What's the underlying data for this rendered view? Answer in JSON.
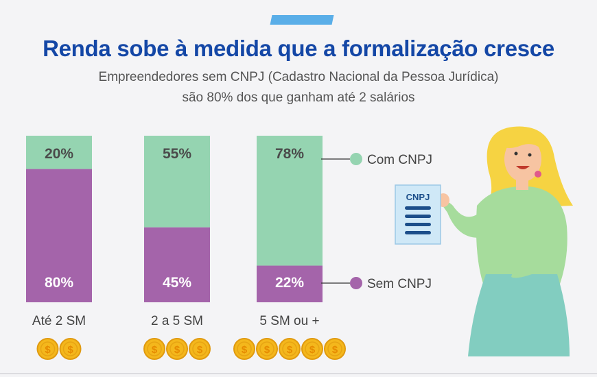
{
  "header": {
    "title": "Renda sobe à medida que a formalização cresce",
    "subtitle_line1": "Empreendedores sem CNPJ (Cadastro Nacional da Pessoa Jurídica)",
    "subtitle_line2": "são 80% dos que ganham até 2 salários"
  },
  "colors": {
    "com_cnpj": "#95d4b1",
    "sem_cnpj": "#a464aa",
    "title": "#1447a6",
    "accent": "#5aaee8",
    "coin": "#f4b71c"
  },
  "illustration": {
    "document_label": "CNPJ"
  },
  "chart_data": {
    "type": "bar",
    "stacked": true,
    "categories": [
      "Até 2 SM",
      "2 a 5 SM",
      "5 SM ou +"
    ],
    "series": [
      {
        "name": "Sem CNPJ",
        "values": [
          80,
          45,
          22
        ],
        "labels": [
          "80%",
          "45%",
          "22%"
        ]
      },
      {
        "name": "Com CNPJ",
        "values": [
          20,
          55,
          78
        ],
        "labels": [
          "20%",
          "55%",
          "78%"
        ]
      }
    ],
    "ylim": [
      0,
      100
    ],
    "legend": [
      "Com CNPJ",
      "Sem CNPJ"
    ],
    "legend_placement": "right",
    "coins_per_category": [
      2,
      3,
      5
    ],
    "coin_symbol": "$",
    "grid": false
  }
}
